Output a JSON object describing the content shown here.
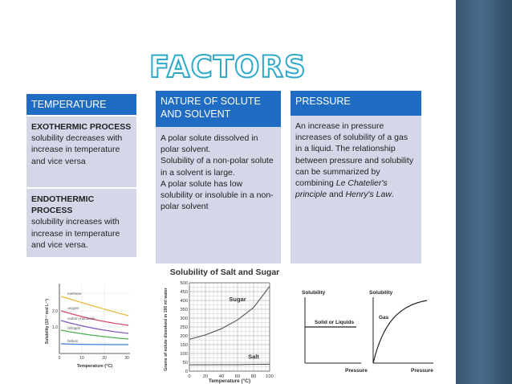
{
  "slide": {
    "title": "FACTORS",
    "accent_color": "#1f6cc2",
    "panel_color": "#d3d7e8"
  },
  "columns": {
    "temperature": {
      "header": "TEMPERATURE",
      "exo_title": "EXOTHERMIC PROCESS",
      "exo_text": " solubility decreases with increase in temperature and vice versa",
      "endo_title": "ENDOTHERMIC PROCESS",
      "endo_text": "solubility increases with increase in temperature and vice versa."
    },
    "nature": {
      "header": "NATURE OF SOLUTE AND SOLVENT",
      "line1": "A polar solute dissolved in polar solvent.",
      "line2": "Solubility of a non-polar solute in a solvent is large.",
      "line3": "A polar solute has low solubility or insoluble in a non-polar solvent"
    },
    "pressure": {
      "header": "PRESSURE",
      "text_before": "An increase in pressure increases of solubility of a gas in a liquid. The relationship between pressure and solubility can be summarized by combining ",
      "le_chatelier": "Le Chatelier's principle",
      "and_text": " and ",
      "henry": "Henry's Law",
      "end": "."
    }
  },
  "gas_chart": {
    "ylabel": "Solubility (10⁻³ mol L⁻¹)",
    "xlabel": "Temperature (°C)",
    "x_ticks": [
      "0",
      "10",
      "20",
      "30"
    ],
    "y_ticks": [
      "2.0",
      "1.0"
    ],
    "series": [
      "methane",
      "oxygen",
      "carbon monoxide",
      "nitrogen",
      "helium"
    ]
  },
  "chart_data": {
    "type": "line",
    "title": "Solubility of Salt and Sugar",
    "xlabel": "Temperature (°C)",
    "ylabel": "Grams of solute dissolved in 100 ml water",
    "x": [
      0,
      20,
      40,
      60,
      80,
      100
    ],
    "x_ticks": [
      "0",
      "20",
      "40",
      "60",
      "80",
      "100"
    ],
    "y_ticks": [
      "500",
      "450",
      "400",
      "350",
      "300",
      "250",
      "200",
      "150",
      "100",
      "50",
      "0"
    ],
    "ylim": [
      0,
      500
    ],
    "xlim": [
      0,
      100
    ],
    "grid": true,
    "series": [
      {
        "name": "Sugar",
        "values": [
          180,
          205,
          240,
          290,
          360,
          480
        ]
      },
      {
        "name": "Salt",
        "values": [
          36,
          36,
          37,
          37,
          38,
          39
        ]
      }
    ]
  },
  "pressure_charts": {
    "left": {
      "ylabel": "Solubility",
      "xlabel": "Pressure",
      "label": "Solid or Liquids"
    },
    "right": {
      "ylabel": "Solubility",
      "xlabel": "Pressure",
      "label": "Gas"
    }
  }
}
